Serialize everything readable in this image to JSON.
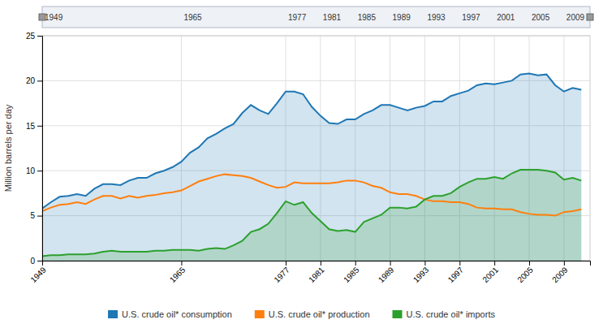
{
  "chart_data": {
    "type": "line",
    "ylabel": "Million barrels per day",
    "x": [
      1949,
      1950,
      1951,
      1952,
      1953,
      1954,
      1955,
      1956,
      1957,
      1958,
      1959,
      1960,
      1961,
      1962,
      1963,
      1964,
      1965,
      1966,
      1967,
      1968,
      1969,
      1970,
      1971,
      1972,
      1973,
      1974,
      1975,
      1976,
      1977,
      1978,
      1979,
      1980,
      1981,
      1982,
      1983,
      1984,
      1985,
      1986,
      1987,
      1988,
      1989,
      1990,
      1991,
      1992,
      1993,
      1994,
      1995,
      1996,
      1997,
      1998,
      1999,
      2000,
      2001,
      2002,
      2003,
      2004,
      2005,
      2006,
      2007,
      2008,
      2009,
      2010,
      2011
    ],
    "series": [
      {
        "name": "U.S. crude oil* consumption",
        "type": "area",
        "values": [
          5.8,
          6.5,
          7.1,
          7.2,
          7.4,
          7.2,
          8.0,
          8.5,
          8.5,
          8.4,
          8.9,
          9.2,
          9.2,
          9.7,
          10.0,
          10.4,
          11.0,
          12.0,
          12.6,
          13.6,
          14.1,
          14.7,
          15.2,
          16.4,
          17.3,
          16.7,
          16.3,
          17.5,
          18.8,
          18.8,
          18.5,
          17.1,
          16.1,
          15.3,
          15.2,
          15.7,
          15.7,
          16.3,
          16.7,
          17.3,
          17.3,
          17.0,
          16.7,
          17.0,
          17.2,
          17.7,
          17.7,
          18.3,
          18.6,
          18.9,
          19.5,
          19.7,
          19.6,
          19.8,
          20.0,
          20.7,
          20.8,
          20.6,
          20.7,
          19.5,
          18.8,
          19.2,
          19.0
        ]
      },
      {
        "name": "U.S. crude oil* production",
        "type": "line",
        "values": [
          5.5,
          5.9,
          6.2,
          6.3,
          6.5,
          6.3,
          6.8,
          7.2,
          7.2,
          6.9,
          7.2,
          7.0,
          7.2,
          7.3,
          7.5,
          7.6,
          7.8,
          8.3,
          8.8,
          9.1,
          9.4,
          9.6,
          9.5,
          9.4,
          9.2,
          8.8,
          8.4,
          8.1,
          8.2,
          8.7,
          8.6,
          8.6,
          8.6,
          8.6,
          8.7,
          8.9,
          8.9,
          8.7,
          8.3,
          8.1,
          7.6,
          7.4,
          7.4,
          7.2,
          6.8,
          6.6,
          6.6,
          6.5,
          6.5,
          6.3,
          5.9,
          5.8,
          5.8,
          5.7,
          5.7,
          5.4,
          5.2,
          5.1,
          5.1,
          5.0,
          5.4,
          5.5,
          5.7
        ]
      },
      {
        "name": "U.S. crude oil* imports",
        "type": "area",
        "values": [
          0.5,
          0.6,
          0.6,
          0.7,
          0.7,
          0.7,
          0.8,
          1.0,
          1.1,
          1.0,
          1.0,
          1.0,
          1.0,
          1.1,
          1.1,
          1.2,
          1.2,
          1.2,
          1.1,
          1.3,
          1.4,
          1.3,
          1.7,
          2.2,
          3.2,
          3.5,
          4.1,
          5.3,
          6.6,
          6.2,
          6.5,
          5.3,
          4.4,
          3.5,
          3.3,
          3.4,
          3.2,
          4.3,
          4.7,
          5.1,
          5.9,
          5.9,
          5.8,
          6.0,
          6.8,
          7.2,
          7.2,
          7.5,
          8.2,
          8.7,
          9.1,
          9.1,
          9.3,
          9.1,
          9.7,
          10.1,
          10.1,
          10.1,
          10.0,
          9.8,
          9.0,
          9.2,
          8.9
        ]
      }
    ],
    "xlim": [
      1949,
      2012
    ],
    "xticks": [
      1949,
      1965,
      1977,
      1981,
      1985,
      1989,
      1993,
      1997,
      2001,
      2005,
      2009
    ],
    "ylim": [
      0,
      25
    ],
    "yticks": [
      0,
      5,
      10,
      15,
      20,
      25
    ],
    "grid": true,
    "legend": "bottom"
  }
}
